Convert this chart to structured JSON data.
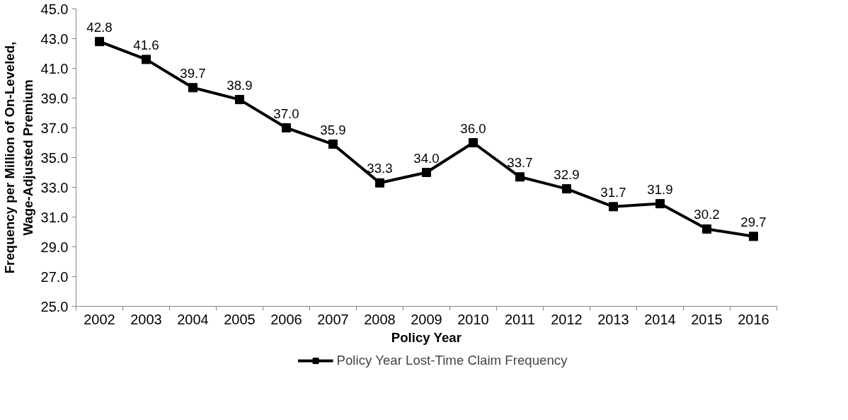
{
  "chart_data": {
    "type": "line",
    "xlabel": "Policy Year",
    "ylabel": "Frequency per Million of On-Leveled,\nWage-Adjusted Premium",
    "categories": [
      "2002",
      "2003",
      "2004",
      "2005",
      "2006",
      "2007",
      "2008",
      "2009",
      "2010",
      "2011",
      "2012",
      "2013",
      "2014",
      "2015",
      "2016"
    ],
    "series": [
      {
        "name": "Policy Year Lost-Time Claim Frequency",
        "color": "#000000",
        "values": [
          42.8,
          41.6,
          39.7,
          38.9,
          37.0,
          35.9,
          33.3,
          34.0,
          36.0,
          33.7,
          32.9,
          31.7,
          31.9,
          30.2,
          29.7
        ],
        "value_labels": [
          "42.8",
          "41.6",
          "39.7",
          "38.9",
          "37.0",
          "35.9",
          "33.3",
          "34.0",
          "36.0",
          "33.7",
          "32.9",
          "31.7",
          "31.9",
          "30.2",
          "29.7"
        ]
      }
    ],
    "ylim": [
      25,
      45
    ],
    "yticks": [
      {
        "value": 25,
        "label": "25.0"
      },
      {
        "value": 27,
        "label": "27.0"
      },
      {
        "value": 29,
        "label": "29.0"
      },
      {
        "value": 31,
        "label": "31.0"
      },
      {
        "value": 33,
        "label": "33.0"
      },
      {
        "value": 35,
        "label": "35.0"
      },
      {
        "value": 37,
        "label": "37.0"
      },
      {
        "value": 39,
        "label": "39.0"
      },
      {
        "value": 41,
        "label": "41.0"
      },
      {
        "value": 43,
        "label": "43.0"
      },
      {
        "value": 45,
        "label": "45.0"
      }
    ],
    "marker": "square",
    "line_style": "solid",
    "legend": "bottom"
  }
}
